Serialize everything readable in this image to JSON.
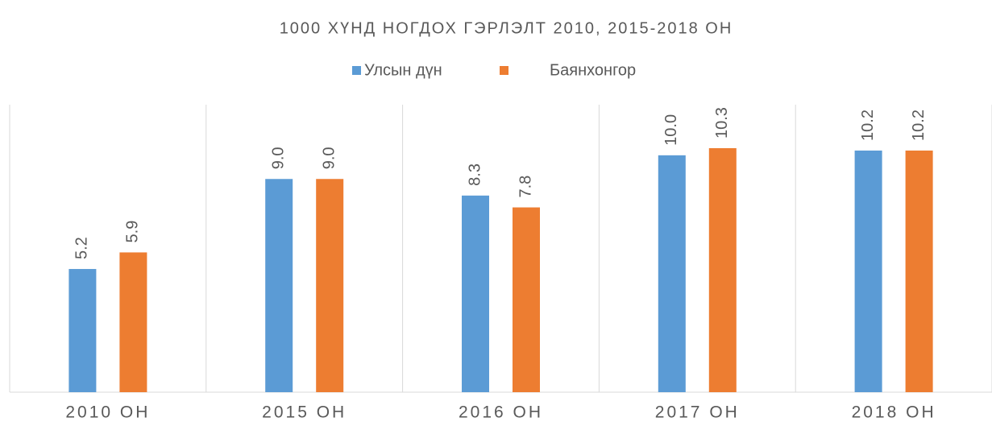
{
  "chart_data": {
    "type": "bar",
    "title": "1000 ХҮНД НОГДОХ ГЭРЛЭЛТ 2010, 2015-2018 ОН",
    "categories": [
      "2010 ОН",
      "2015 ОН",
      "2016 ОН",
      "2017 ОН",
      "2018 ОН"
    ],
    "series": [
      {
        "name": "Улсын дүн",
        "color": "#5b9bd5",
        "values": [
          5.2,
          9.0,
          8.3,
          10.0,
          10.2
        ],
        "value_labels": [
          "5.2",
          "9.0",
          "8.3",
          "10.0",
          "10.2"
        ]
      },
      {
        "name": "Баянхонгор",
        "color": "#ed7d31",
        "values": [
          5.9,
          9.0,
          7.8,
          10.3,
          10.2
        ],
        "value_labels": [
          "5.9",
          "9.0",
          "7.8",
          "10.3",
          "10.2"
        ]
      }
    ],
    "ylim": [
      0,
      12
    ],
    "legend": "top"
  }
}
